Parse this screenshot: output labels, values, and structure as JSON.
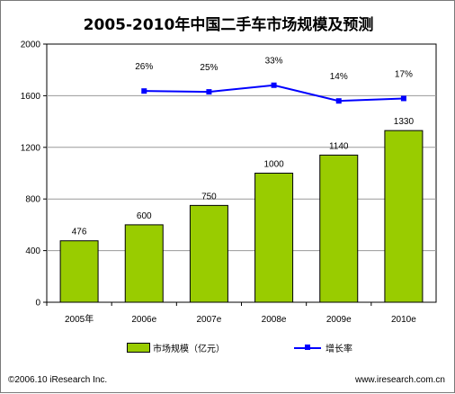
{
  "chart_data": {
    "type": "bar",
    "title": "2005-2010年中国二手车市场规模及预测",
    "categories": [
      "2005年",
      "2006e",
      "2007e",
      "2008e",
      "2009e",
      "2010e"
    ],
    "ylim": [
      0,
      2000
    ],
    "yticks": [
      0,
      400,
      800,
      1200,
      1600,
      2000
    ],
    "grid": true,
    "legend_position": "bottom",
    "series": [
      {
        "name": "市场规模（亿元）",
        "type": "bar",
        "values": [
          476,
          600,
          750,
          1000,
          1140,
          1330
        ],
        "labels": [
          "476",
          "600",
          "750",
          "1000",
          "1140",
          "1330"
        ],
        "color": "#99cc00"
      },
      {
        "name": "增长率",
        "type": "line",
        "values": [
          null,
          26,
          25,
          33,
          14,
          17
        ],
        "labels": [
          "",
          "26%",
          "25%",
          "33%",
          "14%",
          "17%"
        ],
        "color": "#0000ff"
      }
    ]
  },
  "footer": {
    "copyright": "©2006.10 iResearch Inc.",
    "website": "www.iresearch.com.cn"
  }
}
